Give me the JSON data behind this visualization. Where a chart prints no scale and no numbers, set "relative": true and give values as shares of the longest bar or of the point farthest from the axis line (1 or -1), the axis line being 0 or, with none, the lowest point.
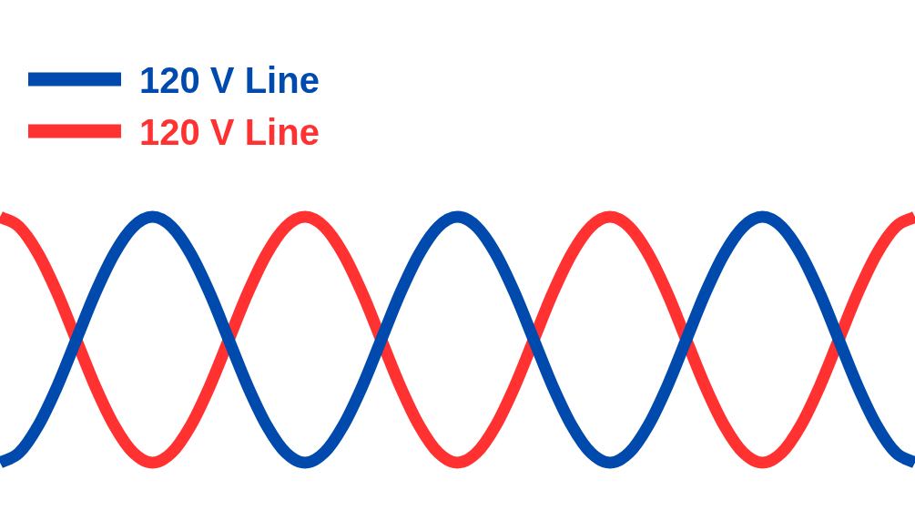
{
  "chart_data": {
    "type": "line",
    "relative": true,
    "legend": "top left",
    "categories": [
      null,
      null,
      null,
      null,
      null,
      null,
      null,
      null,
      null,
      null,
      null,
      null,
      null,
      null,
      null,
      null,
      null,
      null,
      null,
      null,
      null,
      null,
      null,
      null,
      null,
      null,
      null,
      null,
      null,
      null,
      null,
      null,
      null,
      null,
      null,
      null,
      null,
      null,
      null,
      null,
      null,
      null,
      null,
      null,
      null,
      null,
      null,
      null,
      null
    ],
    "series": [
      {
        "name": "120 V Line",
        "color": "#004aad",
        "values": [
          0,
          0.04,
          0.15,
          0.31,
          0.5,
          0.69,
          0.85,
          0.96,
          1,
          0.96,
          0.85,
          0.69,
          0.5,
          0.31,
          0.15,
          0.04,
          0,
          0.04,
          0.15,
          0.31,
          0.5,
          0.69,
          0.85,
          0.96,
          1,
          0.96,
          0.85,
          0.69,
          0.5,
          0.31,
          0.15,
          0.04,
          0,
          0.04,
          0.15,
          0.31,
          0.5,
          0.69,
          0.85,
          0.96,
          1,
          0.96,
          0.85,
          0.69,
          0.5,
          0.31,
          0.15,
          0.04,
          0
        ]
      },
      {
        "name": "120 V Line",
        "color": "#ff3131",
        "values": [
          1,
          0.96,
          0.85,
          0.69,
          0.5,
          0.31,
          0.15,
          0.04,
          0,
          0.04,
          0.15,
          0.31,
          0.5,
          0.69,
          0.85,
          0.96,
          1,
          0.96,
          0.85,
          0.69,
          0.5,
          0.31,
          0.15,
          0.04,
          0,
          0.04,
          0.15,
          0.31,
          0.5,
          0.69,
          0.85,
          0.96,
          1,
          0.96,
          0.85,
          0.69,
          0.5,
          0.31,
          0.15,
          0.04,
          0,
          0.04,
          0.15,
          0.31,
          0.5,
          0.69,
          0.85,
          0.96,
          1
        ]
      }
    ]
  }
}
